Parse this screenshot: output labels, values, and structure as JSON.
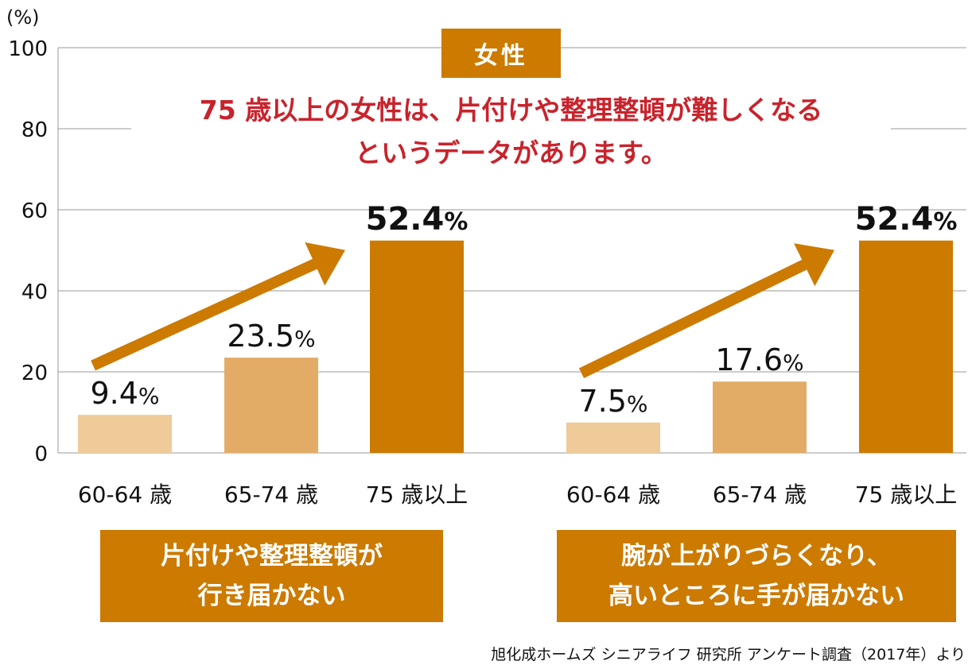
{
  "chart_data": {
    "type": "bar",
    "y_unit_label": "(%)",
    "y_ticks": [
      0,
      20,
      40,
      60,
      80,
      100
    ],
    "ylim": [
      0,
      100
    ],
    "grid": true,
    "groups": [
      {
        "caption": "片付けや整理整頓が\n行き届かない",
        "categories": [
          "60-64 歳",
          "65-74 歳",
          "75 歳以上"
        ],
        "values": [
          9.4,
          23.5,
          52.4
        ],
        "value_labels": [
          "9.4%",
          "23.5%",
          "52.4%"
        ]
      },
      {
        "caption": "腕が上がりづらくなり、\n高いところに手が届かない",
        "categories": [
          "60-64 歳",
          "65-74 歳",
          "75 歳以上"
        ],
        "values": [
          7.5,
          17.6,
          52.4
        ],
        "value_labels": [
          "7.5%",
          "17.6%",
          "52.4%"
        ]
      }
    ],
    "bar_colors": [
      "#eecb98",
      "#e3ac66",
      "#cc7a00"
    ]
  },
  "badge": "女性",
  "headline_line1": "75 歳以上の女性は、片付けや整理整頓が難しくなる",
  "headline_line2": "というデータがあります。",
  "source": "旭化成ホームズ シニアライフ 研究所 アンケート調査（2017年）より"
}
